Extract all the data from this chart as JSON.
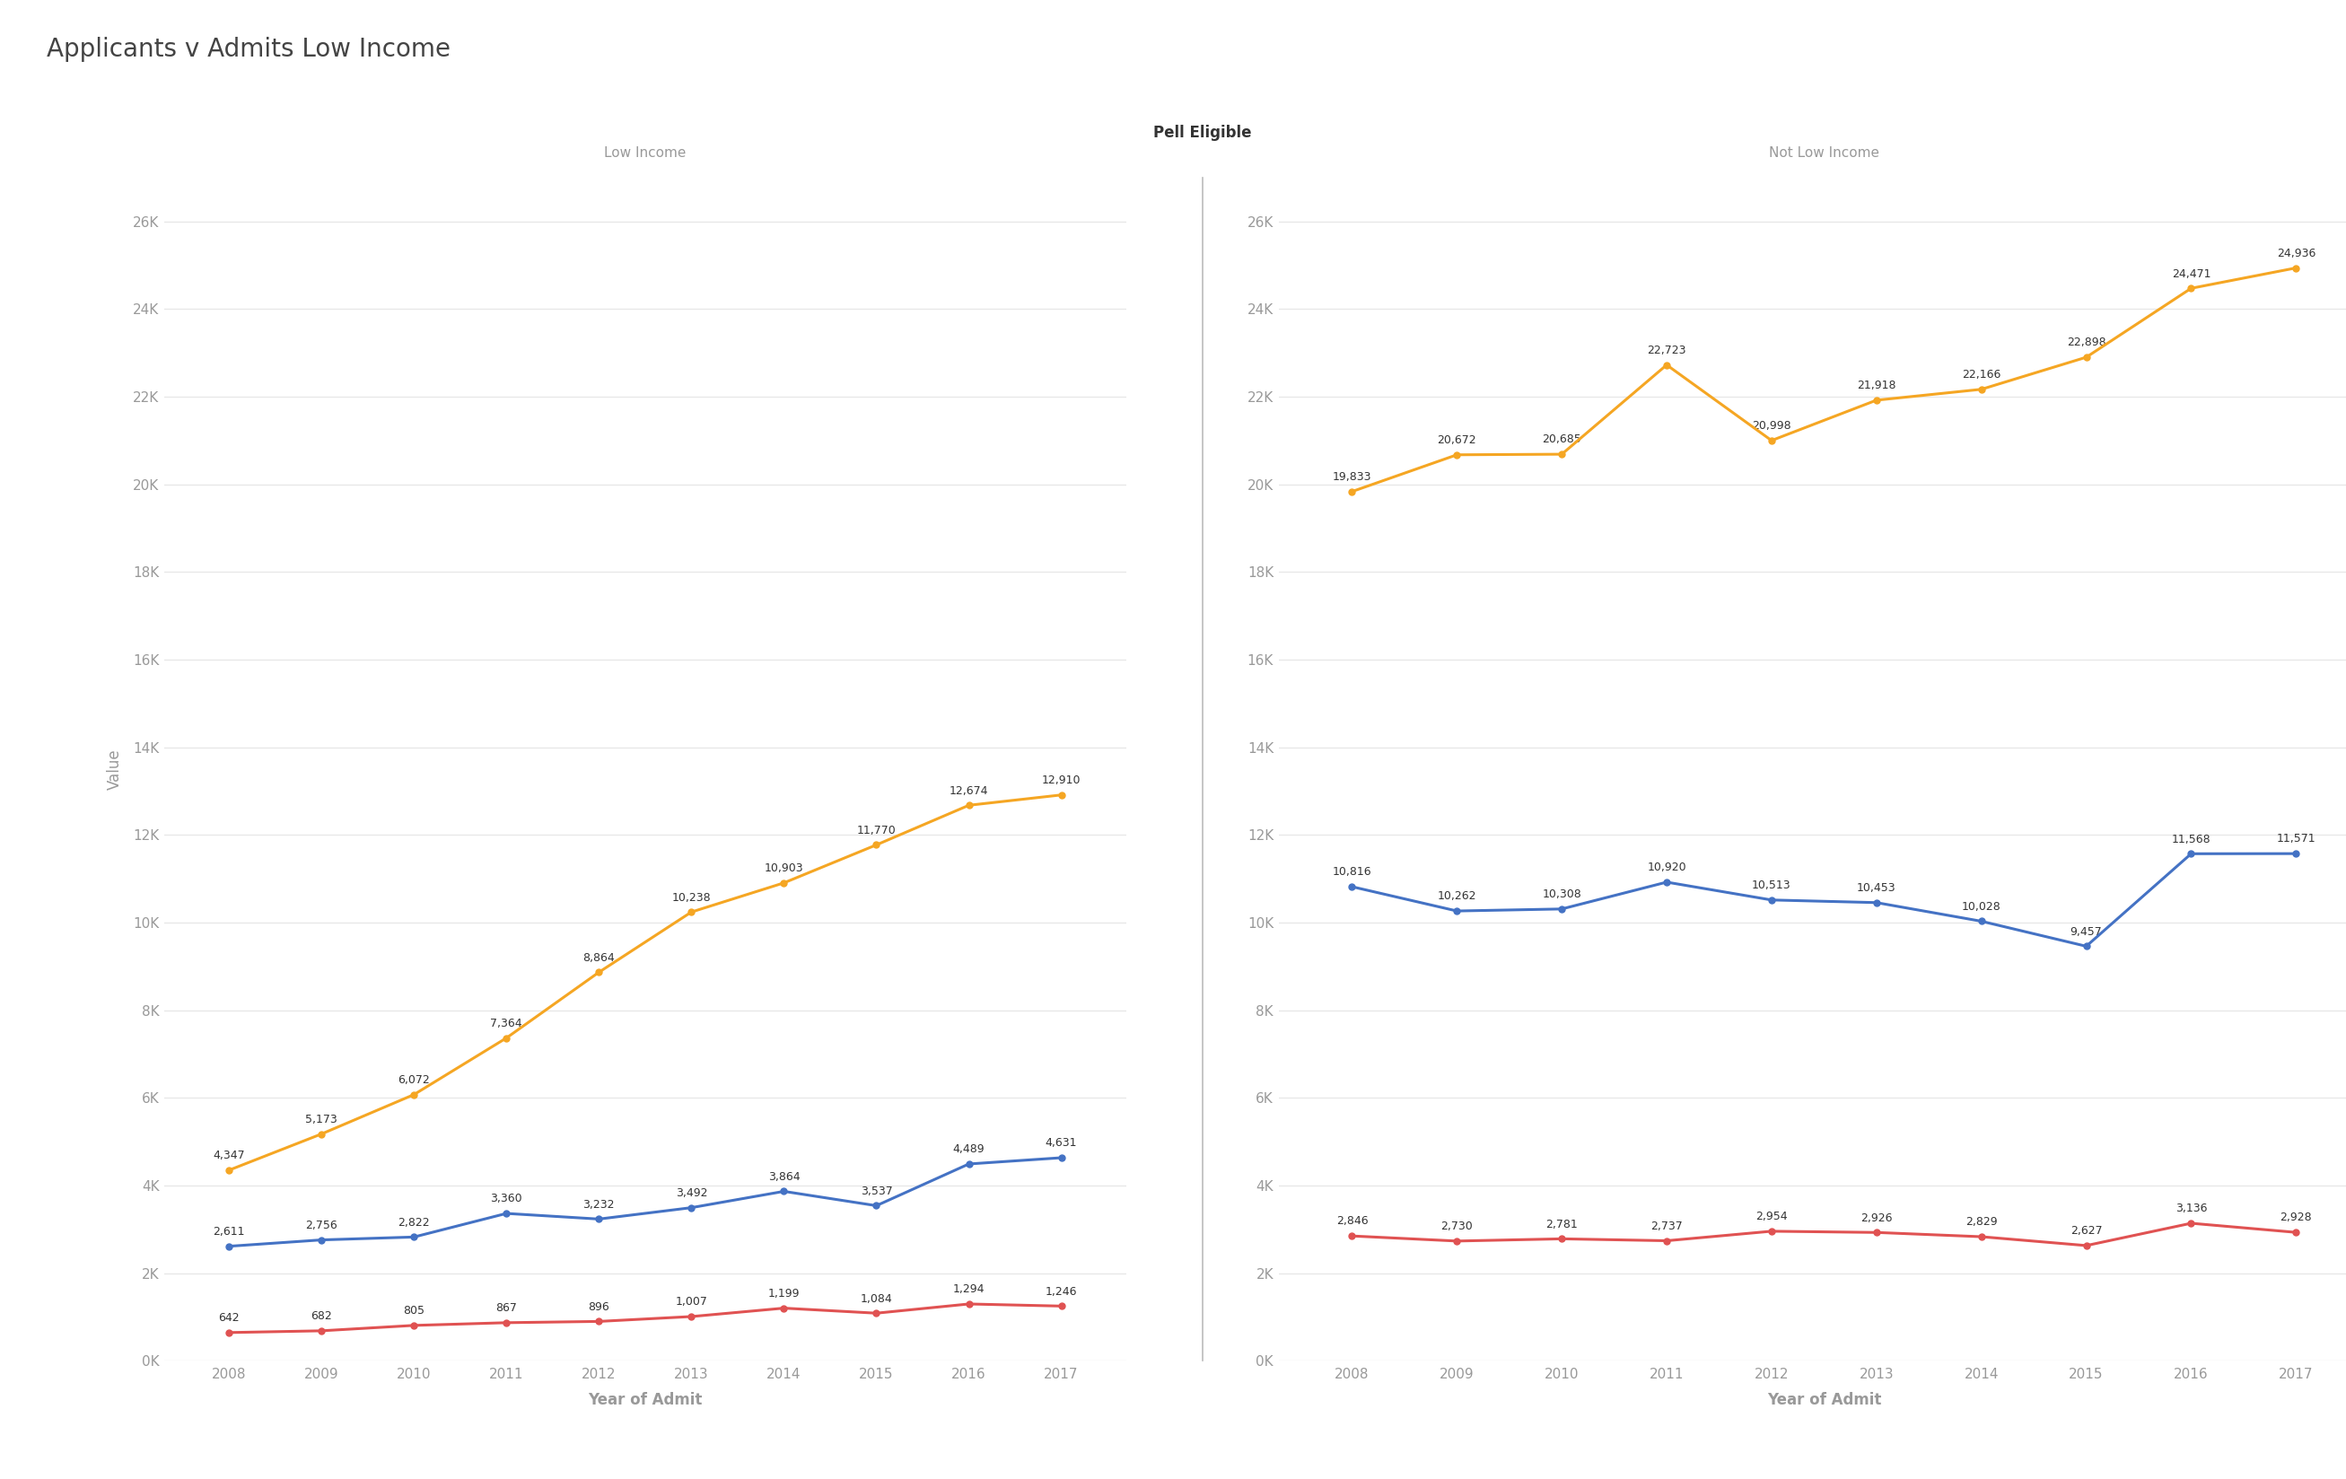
{
  "title": "Applicants v Admits Low Income",
  "subtitle_center": "Pell Eligible",
  "panel_left_label": "Low Income",
  "panel_right_label": "Not Low Income",
  "xlabel": "Year of Admit",
  "ylabel": "Value",
  "years": [
    2008,
    2009,
    2010,
    2011,
    2012,
    2013,
    2014,
    2015,
    2016,
    2017
  ],
  "low_income": {
    "applicants": [
      4347,
      5173,
      6072,
      7364,
      8864,
      10238,
      10903,
      11770,
      12674,
      12910
    ],
    "admits": [
      2611,
      2756,
      2822,
      3360,
      3232,
      3492,
      3864,
      3537,
      4489,
      4631
    ],
    "enrollees": [
      642,
      682,
      805,
      867,
      896,
      1007,
      1199,
      1084,
      1294,
      1246
    ]
  },
  "not_low_income": {
    "applicants": [
      19833,
      20672,
      20685,
      22723,
      20998,
      21918,
      22166,
      22898,
      24471,
      24936
    ],
    "admits": [
      10816,
      10262,
      10308,
      10920,
      10513,
      10453,
      10028,
      9457,
      11568,
      11571
    ],
    "enrollees": [
      2846,
      2730,
      2781,
      2737,
      2954,
      2926,
      2829,
      2627,
      3136,
      2928
    ]
  },
  "colors": {
    "applicants": "#F5A623",
    "admits": "#4472C4",
    "enrollees": "#E05252"
  },
  "ylim": [
    0,
    27000
  ],
  "yticks": [
    0,
    2000,
    4000,
    6000,
    8000,
    10000,
    12000,
    14000,
    16000,
    18000,
    20000,
    22000,
    24000,
    26000
  ],
  "bg_color": "#FFFFFF",
  "plot_bg": "#FFFFFF",
  "grid_color": "#E8E8E8",
  "title_color": "#444444",
  "title_fontsize": 20,
  "label_fontsize": 12,
  "tick_fontsize": 11,
  "annotation_fontsize": 9,
  "panel_label_fontsize": 11,
  "subtitle_fontsize": 12,
  "tick_color": "#999999",
  "panel_label_color": "#999999",
  "ann_color": "#333333"
}
